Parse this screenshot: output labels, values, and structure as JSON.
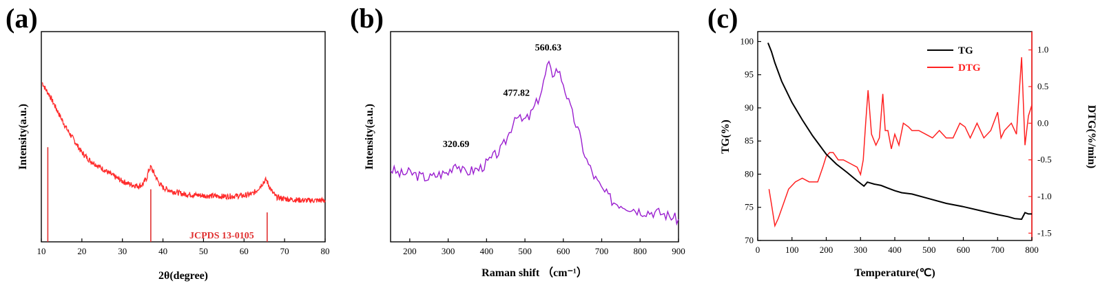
{
  "chart_data": [
    {
      "id": "a",
      "type": "line",
      "panel_label": "(a)",
      "xlabel": "2θ(degree)",
      "ylabel": "Intensity(a.u.)",
      "xlim": [
        10,
        80
      ],
      "xticks": [
        "10",
        "20",
        "30",
        "40",
        "50",
        "60",
        "70",
        "80"
      ],
      "yticks_shown": false,
      "colors": {
        "series": "#ff2a2a",
        "reference": "#e03030",
        "annotation": "#e03030"
      },
      "series": [
        {
          "x": [
            10.2,
            11,
            12,
            13,
            14,
            15,
            16,
            18,
            20,
            22,
            25,
            28,
            30,
            32,
            34,
            35,
            36,
            36.5,
            37,
            38,
            39,
            40,
            42,
            45,
            50,
            55,
            60,
            62,
            63,
            64,
            65,
            65.5,
            66,
            67,
            68,
            70,
            72,
            75,
            78,
            80
          ],
          "y": [
            1.0,
            0.96,
            0.92,
            0.87,
            0.82,
            0.77,
            0.72,
            0.64,
            0.56,
            0.51,
            0.46,
            0.41,
            0.38,
            0.36,
            0.35,
            0.36,
            0.4,
            0.45,
            0.47,
            0.42,
            0.37,
            0.34,
            0.32,
            0.3,
            0.29,
            0.285,
            0.29,
            0.3,
            0.32,
            0.35,
            0.38,
            0.39,
            0.36,
            0.31,
            0.28,
            0.27,
            0.265,
            0.26,
            0.26,
            0.26
          ]
        }
      ],
      "reference": {
        "label": "JCPDS 13-0105",
        "peaks": [
          {
            "x": 11.6,
            "height": 0.45
          },
          {
            "x": 37.0,
            "height": 0.25
          },
          {
            "x": 65.7,
            "height": 0.14
          }
        ]
      }
    },
    {
      "id": "b",
      "type": "line",
      "panel_label": "(b)",
      "xlabel": "Raman shift （cm⁻¹）",
      "ylabel": "Intensity(a.u.)",
      "xlim": [
        150,
        900
      ],
      "xticks": [
        "200",
        "300",
        "400",
        "500",
        "600",
        "700",
        "800",
        "900"
      ],
      "yticks_shown": false,
      "colors": {
        "series": "#9a1ecf",
        "annotation": "#000000"
      },
      "series": [
        {
          "x": [
            150,
            175,
            200,
            225,
            250,
            275,
            300,
            320,
            340,
            360,
            380,
            400,
            420,
            440,
            460,
            477,
            490,
            510,
            530,
            545,
            560,
            570,
            585,
            600,
            620,
            640,
            660,
            680,
            700,
            730,
            760,
            800,
            850,
            880,
            900
          ],
          "y": [
            0.4,
            0.37,
            0.38,
            0.36,
            0.35,
            0.37,
            0.38,
            0.44,
            0.38,
            0.39,
            0.4,
            0.43,
            0.47,
            0.51,
            0.6,
            0.71,
            0.66,
            0.68,
            0.76,
            0.84,
            0.98,
            0.92,
            0.95,
            0.87,
            0.72,
            0.6,
            0.45,
            0.36,
            0.29,
            0.22,
            0.2,
            0.17,
            0.16,
            0.14,
            0.12
          ]
        }
      ],
      "annotations": [
        {
          "text": "320.69",
          "x": 320.69,
          "y": 0.52
        },
        {
          "text": "477.82",
          "x": 477.82,
          "y": 0.8
        },
        {
          "text": "560.63",
          "x": 560.63,
          "y": 1.05
        }
      ]
    },
    {
      "id": "c",
      "type": "line",
      "panel_label": "(c)",
      "xlabel": "Temperature(℃)",
      "ylabel_left": "TG(%)",
      "ylabel_right": "DTG(%/min)",
      "xlim": [
        0,
        800
      ],
      "ylim_left": [
        70,
        101.5
      ],
      "ylim_right": [
        -1.6,
        1.25
      ],
      "xticks": [
        "0",
        "100",
        "200",
        "300",
        "400",
        "500",
        "600",
        "700",
        "800"
      ],
      "yticks_left": [
        "70",
        "75",
        "80",
        "85",
        "90",
        "95",
        "100"
      ],
      "yticks_right": [
        "-1.5",
        "-1.0",
        "-0.5",
        "0.0",
        "0.5",
        "1.0"
      ],
      "colors": {
        "tg": "#000000",
        "dtg": "#ff2020",
        "right_axis": "#ff2020"
      },
      "legend": {
        "position": "top-center",
        "entries": [
          "TG",
          "DTG"
        ]
      },
      "series": [
        {
          "name": "TG",
          "axis": "left",
          "x": [
            30,
            40,
            50,
            70,
            100,
            130,
            160,
            200,
            230,
            260,
            290,
            310,
            320,
            340,
            360,
            380,
            400,
            420,
            450,
            500,
            550,
            600,
            650,
            700,
            730,
            750,
            770,
            780,
            790,
            800
          ],
          "y": [
            99.8,
            98.5,
            96.8,
            94.0,
            90.8,
            88.2,
            85.8,
            83.0,
            81.5,
            80.3,
            79.0,
            78.2,
            78.8,
            78.5,
            78.3,
            77.9,
            77.5,
            77.2,
            77.0,
            76.3,
            75.6,
            75.1,
            74.5,
            73.9,
            73.6,
            73.3,
            73.2,
            74.2,
            74.0,
            74.0
          ]
        },
        {
          "name": "DTG",
          "axis": "right",
          "x": [
            33,
            40,
            50,
            60,
            75,
            90,
            110,
            130,
            150,
            175,
            190,
            200,
            210,
            220,
            235,
            250,
            270,
            290,
            300,
            308,
            315,
            322,
            332,
            345,
            355,
            365,
            372,
            380,
            390,
            400,
            412,
            425,
            440,
            450,
            470,
            490,
            510,
            530,
            550,
            570,
            590,
            605,
            620,
            640,
            660,
            680,
            700,
            710,
            720,
            740,
            755,
            770,
            780,
            790,
            800
          ],
          "y": [
            -0.9,
            -1.1,
            -1.4,
            -1.3,
            -1.1,
            -0.9,
            -0.8,
            -0.75,
            -0.8,
            -0.8,
            -0.6,
            -0.45,
            -0.4,
            -0.4,
            -0.5,
            -0.5,
            -0.55,
            -0.6,
            -0.7,
            -0.5,
            0.0,
            0.45,
            -0.15,
            -0.3,
            -0.2,
            0.4,
            -0.1,
            -0.1,
            -0.35,
            -0.15,
            -0.3,
            0.0,
            -0.05,
            -0.1,
            -0.1,
            -0.15,
            -0.2,
            -0.1,
            -0.2,
            -0.2,
            0.0,
            -0.05,
            -0.2,
            0.0,
            -0.2,
            -0.1,
            0.15,
            -0.2,
            -0.1,
            0.0,
            -0.15,
            0.9,
            -0.3,
            0.1,
            0.25
          ]
        }
      ]
    }
  ]
}
